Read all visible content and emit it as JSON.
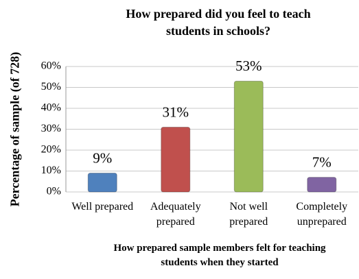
{
  "chart_data": {
    "type": "bar",
    "title": "How prepared did you feel to teach students in schools?",
    "y_label": "Percentage of sample (of 728)",
    "x_label": "How prepared sample members felt for teaching students when they started",
    "categories": [
      "Well prepared",
      "Adequately prepared",
      "Not well prepared",
      "Completely unprepared"
    ],
    "values": [
      9,
      31,
      53,
      7
    ],
    "value_labels": [
      "9%",
      "31%",
      "53%",
      "7%"
    ],
    "colors": [
      "#4f81bd",
      "#c0504d",
      "#9bbb59",
      "#8064a2"
    ],
    "ylim": [
      0,
      60
    ],
    "yticks": [
      {
        "value": 0,
        "label": "0%"
      },
      {
        "value": 10,
        "label": "10%"
      },
      {
        "value": 20,
        "label": "20%"
      },
      {
        "value": 30,
        "label": "30%"
      },
      {
        "value": 40,
        "label": "40%"
      },
      {
        "value": 50,
        "label": "50%"
      },
      {
        "value": 60,
        "label": "60%"
      }
    ],
    "grid": true
  }
}
